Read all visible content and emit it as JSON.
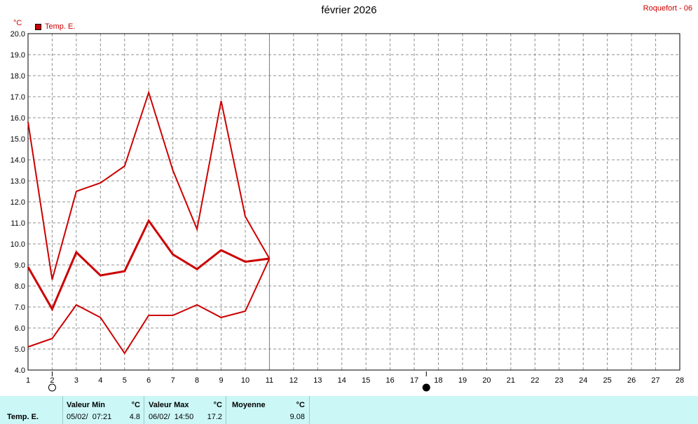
{
  "header": {
    "title": "février 2026",
    "station": "Roquefort - 06",
    "unit": "°C",
    "legend": "Temp. E."
  },
  "colors": {
    "series": "#cc0000",
    "grid": "#909090",
    "current_day_line": "#808080",
    "stats_bg": "#ccf7f7"
  },
  "chart_data": {
    "type": "line",
    "title": "février 2026",
    "ylabel": "°C",
    "ylim": [
      4.0,
      20.0
    ],
    "xlim": [
      1,
      28
    ],
    "y_ticks": [
      4.0,
      5.0,
      6.0,
      7.0,
      8.0,
      9.0,
      10.0,
      11.0,
      12.0,
      13.0,
      14.0,
      15.0,
      16.0,
      17.0,
      18.0,
      19.0,
      20.0
    ],
    "x_ticks": [
      1,
      2,
      3,
      4,
      5,
      6,
      7,
      8,
      9,
      10,
      11,
      12,
      13,
      14,
      15,
      16,
      17,
      18,
      19,
      20,
      21,
      22,
      23,
      24,
      25,
      26,
      27,
      28
    ],
    "grid": true,
    "legend_position": "top-left",
    "current_day": 11,
    "series": [
      {
        "name": "Temp. E.",
        "role": "max",
        "x": [
          1,
          2,
          3,
          4,
          5,
          6,
          7,
          8,
          9,
          10,
          11
        ],
        "y": [
          15.8,
          8.3,
          12.5,
          12.9,
          13.7,
          17.2,
          13.5,
          10.7,
          16.8,
          11.3,
          9.3
        ]
      },
      {
        "name": "Temp. E.",
        "role": "mean",
        "x": [
          1,
          2,
          3,
          4,
          5,
          6,
          7,
          8,
          9,
          10,
          11
        ],
        "y": [
          8.9,
          6.9,
          9.6,
          8.5,
          8.7,
          11.1,
          9.5,
          8.8,
          9.7,
          9.15,
          9.3
        ]
      },
      {
        "name": "Temp. E.",
        "role": "min",
        "x": [
          1,
          2,
          3,
          4,
          5,
          6,
          7,
          8,
          9,
          10,
          11
        ],
        "y": [
          5.1,
          5.5,
          7.1,
          6.5,
          4.8,
          6.6,
          6.6,
          7.1,
          6.5,
          6.8,
          9.3
        ]
      }
    ],
    "moon_phases": [
      {
        "day": 2,
        "phase": "full-moon"
      },
      {
        "day": 17.5,
        "phase": "new-moon"
      }
    ]
  },
  "stats": {
    "row_label": "Temp. E.",
    "min_header": "Valeur Min",
    "min_unit": "°C",
    "min_when": "05/02/  07:21",
    "min_value": "4.8",
    "max_header": "Valeur Max",
    "max_unit": "°C",
    "max_when": "06/02/  14:50",
    "max_value": "17.2",
    "mean_header": "Moyenne",
    "mean_unit": "°C",
    "mean_value": "9.08"
  }
}
